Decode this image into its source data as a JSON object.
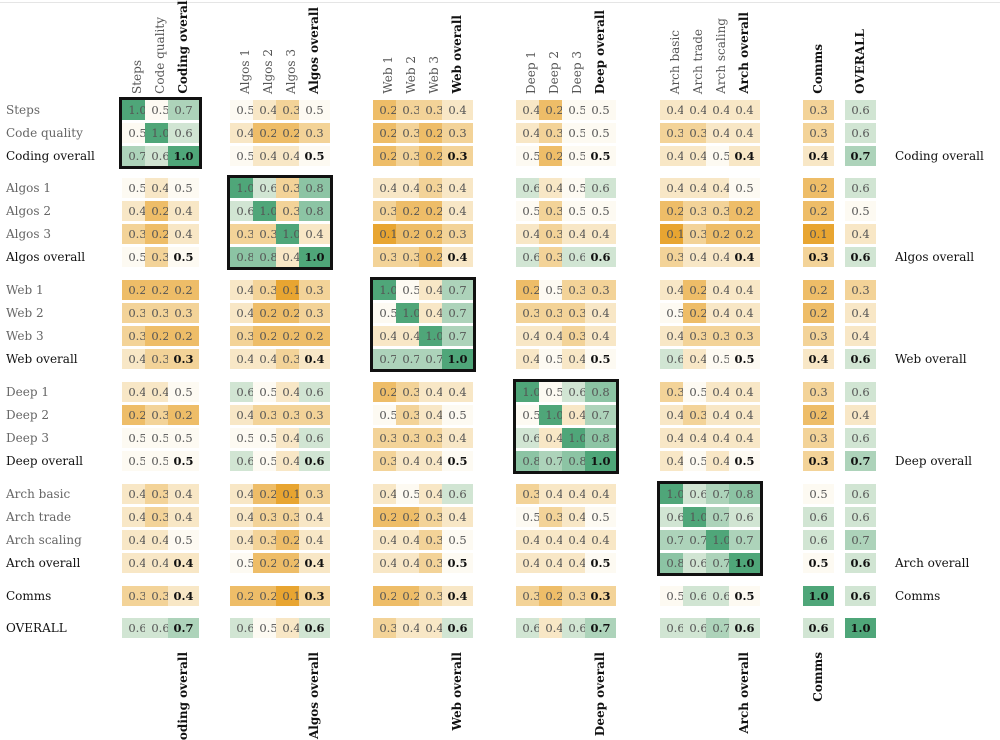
{
  "chart_data": {
    "type": "heatmap",
    "title": "",
    "labels": [
      "Steps",
      "Code quality",
      "Coding overall",
      "Algos 1",
      "Algos 2",
      "Algos 3",
      "Algos overall",
      "Web 1",
      "Web 2",
      "Web 3",
      "Web overall",
      "Deep 1",
      "Deep 2",
      "Deep 3",
      "Deep overall",
      "Arch basic",
      "Arch trade",
      "Arch scaling",
      "Arch overall",
      "Comms",
      "OVERALL"
    ],
    "overall_labels": [
      "Coding overall",
      "Algos overall",
      "Web overall",
      "Deep overall",
      "Arch overall",
      "Comms",
      "OVERALL"
    ],
    "groups": [
      {
        "name": "Coding",
        "members": [
          "Steps",
          "Code quality",
          "Coding overall"
        ]
      },
      {
        "name": "Algos",
        "members": [
          "Algos 1",
          "Algos 2",
          "Algos 3",
          "Algos overall"
        ]
      },
      {
        "name": "Web",
        "members": [
          "Web 1",
          "Web 2",
          "Web 3",
          "Web overall"
        ]
      },
      {
        "name": "Deep",
        "members": [
          "Deep 1",
          "Deep 2",
          "Deep 3",
          "Deep overall"
        ]
      },
      {
        "name": "Arch",
        "members": [
          "Arch basic",
          "Arch trade",
          "Arch scaling",
          "Arch overall"
        ]
      },
      {
        "name": "Comms",
        "members": [
          "Comms"
        ]
      },
      {
        "name": "OVERALL",
        "members": [
          "OVERALL"
        ]
      }
    ],
    "right_labels": [
      "Coding overall",
      "Algos overall",
      "Web overall",
      "Deep overall",
      "Arch overall",
      "Comms"
    ],
    "bottom_labels": [
      "Coding overall",
      "Algos overall",
      "Web overall",
      "Deep overall",
      "Arch overall",
      "Comms"
    ],
    "highlighted_blocks": [
      "Coding",
      "Algos",
      "Web",
      "Deep",
      "Arch"
    ],
    "value_range": [
      0.1,
      1.0
    ],
    "color_scale": {
      "low": "#e8a531",
      "mid": "#fdfaf2",
      "high": "#4fa679"
    },
    "matrix": [
      [
        1.0,
        0.5,
        0.7,
        0.5,
        0.4,
        0.3,
        0.5,
        0.2,
        0.3,
        0.3,
        0.4,
        0.4,
        0.2,
        0.5,
        0.5,
        0.4,
        0.4,
        0.4,
        0.4,
        0.3,
        0.6
      ],
      [
        0.5,
        1.0,
        0.6,
        0.4,
        0.2,
        0.2,
        0.3,
        0.2,
        0.3,
        0.2,
        0.3,
        0.4,
        0.3,
        0.5,
        0.5,
        0.3,
        0.3,
        0.4,
        0.4,
        0.3,
        0.6
      ],
      [
        0.7,
        0.6,
        1.0,
        0.5,
        0.4,
        0.4,
        0.5,
        0.2,
        0.3,
        0.2,
        0.3,
        0.5,
        0.2,
        0.5,
        0.5,
        0.4,
        0.4,
        0.5,
        0.4,
        0.4,
        0.7
      ],
      [
        0.5,
        0.4,
        0.5,
        1.0,
        0.6,
        0.3,
        0.8,
        0.4,
        0.4,
        0.3,
        0.4,
        0.6,
        0.4,
        0.5,
        0.6,
        0.4,
        0.4,
        0.4,
        0.5,
        0.2,
        0.6
      ],
      [
        0.4,
        0.2,
        0.4,
        0.6,
        1.0,
        0.3,
        0.8,
        0.3,
        0.2,
        0.2,
        0.4,
        0.5,
        0.3,
        0.5,
        0.5,
        0.2,
        0.3,
        0.3,
        0.2,
        0.2,
        0.5
      ],
      [
        0.3,
        0.2,
        0.4,
        0.3,
        0.3,
        1.0,
        0.4,
        0.1,
        0.2,
        0.2,
        0.3,
        0.4,
        0.3,
        0.4,
        0.4,
        0.1,
        0.3,
        0.2,
        0.2,
        0.1,
        0.4
      ],
      [
        0.5,
        0.3,
        0.5,
        0.8,
        0.8,
        0.4,
        1.0,
        0.3,
        0.3,
        0.2,
        0.4,
        0.6,
        0.3,
        0.6,
        0.6,
        0.3,
        0.4,
        0.4,
        0.4,
        0.3,
        0.6
      ],
      [
        0.2,
        0.2,
        0.2,
        0.4,
        0.3,
        0.1,
        0.3,
        1.0,
        0.5,
        0.4,
        0.7,
        0.2,
        0.5,
        0.3,
        0.3,
        0.4,
        0.2,
        0.4,
        0.4,
        0.2,
        0.3
      ],
      [
        0.3,
        0.3,
        0.3,
        0.4,
        0.2,
        0.2,
        0.3,
        0.5,
        1.0,
        0.4,
        0.7,
        0.3,
        0.3,
        0.3,
        0.4,
        0.5,
        0.2,
        0.4,
        0.4,
        0.2,
        0.4
      ],
      [
        0.3,
        0.2,
        0.2,
        0.3,
        0.2,
        0.2,
        0.2,
        0.4,
        0.4,
        1.0,
        0.7,
        0.4,
        0.4,
        0.3,
        0.4,
        0.4,
        0.3,
        0.3,
        0.3,
        0.3,
        0.4
      ],
      [
        0.4,
        0.3,
        0.3,
        0.4,
        0.4,
        0.3,
        0.4,
        0.7,
        0.7,
        0.7,
        1.0,
        0.4,
        0.5,
        0.4,
        0.5,
        0.6,
        0.4,
        0.5,
        0.5,
        0.4,
        0.6
      ],
      [
        0.4,
        0.4,
        0.5,
        0.6,
        0.5,
        0.4,
        0.6,
        0.2,
        0.3,
        0.4,
        0.4,
        1.0,
        0.5,
        0.6,
        0.8,
        0.3,
        0.5,
        0.4,
        0.4,
        0.3,
        0.6
      ],
      [
        0.2,
        0.3,
        0.2,
        0.4,
        0.3,
        0.3,
        0.3,
        0.5,
        0.3,
        0.4,
        0.5,
        0.5,
        1.0,
        0.4,
        0.7,
        0.4,
        0.3,
        0.4,
        0.4,
        0.2,
        0.4
      ],
      [
        0.5,
        0.5,
        0.5,
        0.5,
        0.5,
        0.4,
        0.6,
        0.3,
        0.3,
        0.3,
        0.4,
        0.6,
        0.4,
        1.0,
        0.8,
        0.4,
        0.4,
        0.4,
        0.4,
        0.3,
        0.6
      ],
      [
        0.5,
        0.5,
        0.5,
        0.6,
        0.5,
        0.4,
        0.6,
        0.3,
        0.4,
        0.4,
        0.5,
        0.8,
        0.7,
        0.8,
        1.0,
        0.4,
        0.5,
        0.4,
        0.5,
        0.3,
        0.7
      ],
      [
        0.4,
        0.3,
        0.4,
        0.4,
        0.2,
        0.1,
        0.3,
        0.4,
        0.5,
        0.4,
        0.6,
        0.3,
        0.4,
        0.4,
        0.4,
        1.0,
        0.6,
        0.7,
        0.8,
        0.5,
        0.6
      ],
      [
        0.4,
        0.3,
        0.4,
        0.4,
        0.3,
        0.3,
        0.4,
        0.2,
        0.2,
        0.3,
        0.4,
        0.5,
        0.3,
        0.4,
        0.5,
        0.6,
        1.0,
        0.7,
        0.6,
        0.6,
        0.6
      ],
      [
        0.4,
        0.4,
        0.5,
        0.4,
        0.3,
        0.2,
        0.4,
        0.4,
        0.4,
        0.3,
        0.5,
        0.4,
        0.4,
        0.4,
        0.4,
        0.7,
        0.7,
        1.0,
        0.7,
        0.6,
        0.7
      ],
      [
        0.4,
        0.4,
        0.4,
        0.5,
        0.2,
        0.2,
        0.4,
        0.4,
        0.4,
        0.3,
        0.5,
        0.4,
        0.4,
        0.4,
        0.5,
        0.8,
        0.6,
        0.7,
        1.0,
        0.5,
        0.6
      ],
      [
        0.3,
        0.3,
        0.4,
        0.2,
        0.2,
        0.1,
        0.3,
        0.2,
        0.2,
        0.3,
        0.4,
        0.3,
        0.2,
        0.3,
        0.3,
        0.5,
        0.6,
        0.6,
        0.5,
        1.0,
        0.6
      ],
      [
        0.6,
        0.6,
        0.7,
        0.6,
        0.5,
        0.4,
        0.6,
        0.3,
        0.4,
        0.4,
        0.6,
        0.6,
        0.4,
        0.6,
        0.7,
        0.6,
        0.6,
        0.7,
        0.6,
        0.6,
        1.0
      ]
    ]
  }
}
